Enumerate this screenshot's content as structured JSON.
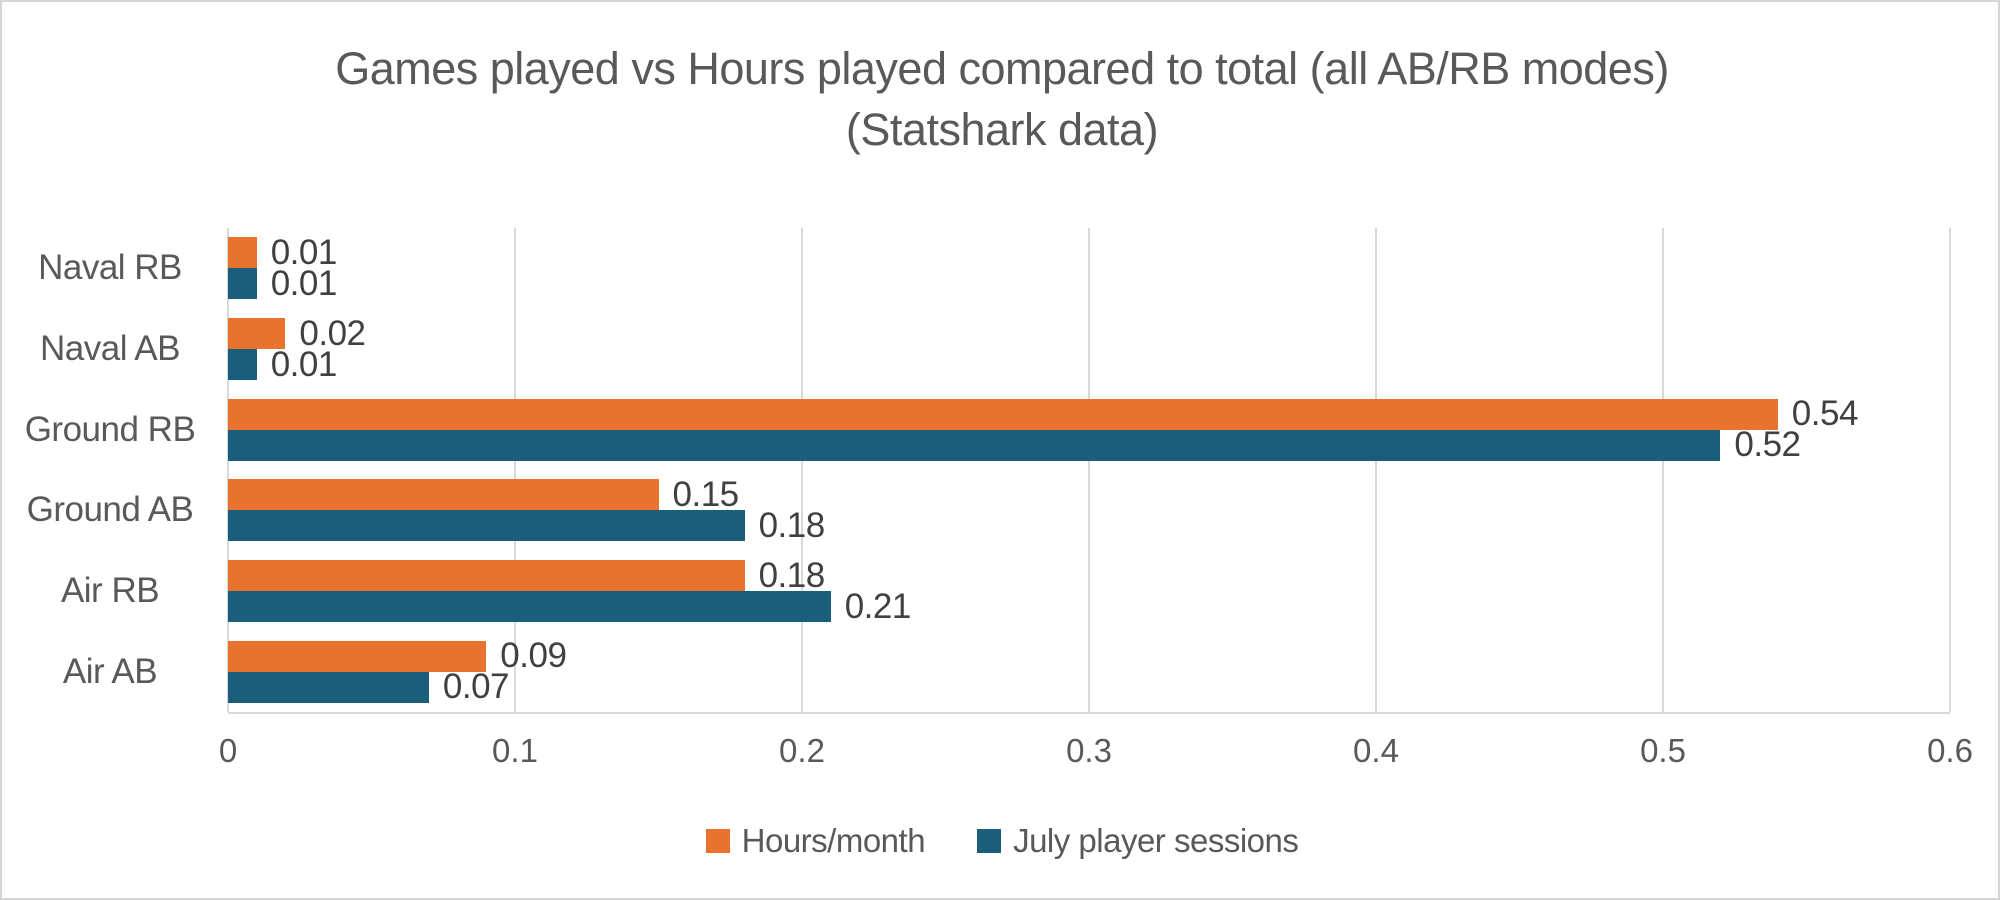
{
  "frame": {
    "background": "#FFFFFF",
    "border_color": "#D6D6D6"
  },
  "chart_data": {
    "type": "bar",
    "orientation": "horizontal",
    "title": "Games played vs Hours played compared to total (all AB/RB modes) (Statshark data)",
    "categories": [
      "Naval RB",
      "Naval AB",
      "Ground RB",
      "Ground AB",
      "Air RB",
      "Air AB"
    ],
    "series": [
      {
        "name": "Hours/month",
        "color": "#E8732F",
        "values": [
          0.01,
          0.02,
          0.54,
          0.15,
          0.18,
          0.09
        ]
      },
      {
        "name": "July player sessions",
        "color": "#1B5E7B",
        "values": [
          0.01,
          0.01,
          0.52,
          0.18,
          0.21,
          0.07
        ]
      }
    ],
    "data_labels": [
      "0.01",
      "0.02",
      "0.54",
      "0.15",
      "0.18",
      "0.09",
      "0.01",
      "0.01",
      "0.52",
      "0.18",
      "0.21",
      "0.07"
    ],
    "xlabel": "",
    "ylabel": "",
    "xlim": [
      0,
      0.6
    ],
    "xticks": [
      0,
      0.1,
      0.2,
      0.3,
      0.4,
      0.5,
      0.6
    ],
    "xtick_labels": [
      "0",
      "0.1",
      "0.2",
      "0.3",
      "0.4",
      "0.5",
      "0.6"
    ],
    "grid": "vertical-on",
    "grid_color": "#D9D9D9",
    "legend_position": "bottom",
    "colors": {
      "title_text": "#595959",
      "axis_text": "#595959",
      "category_text": "#595959",
      "data_label_text": "#404040",
      "legend_text": "#595959"
    }
  }
}
